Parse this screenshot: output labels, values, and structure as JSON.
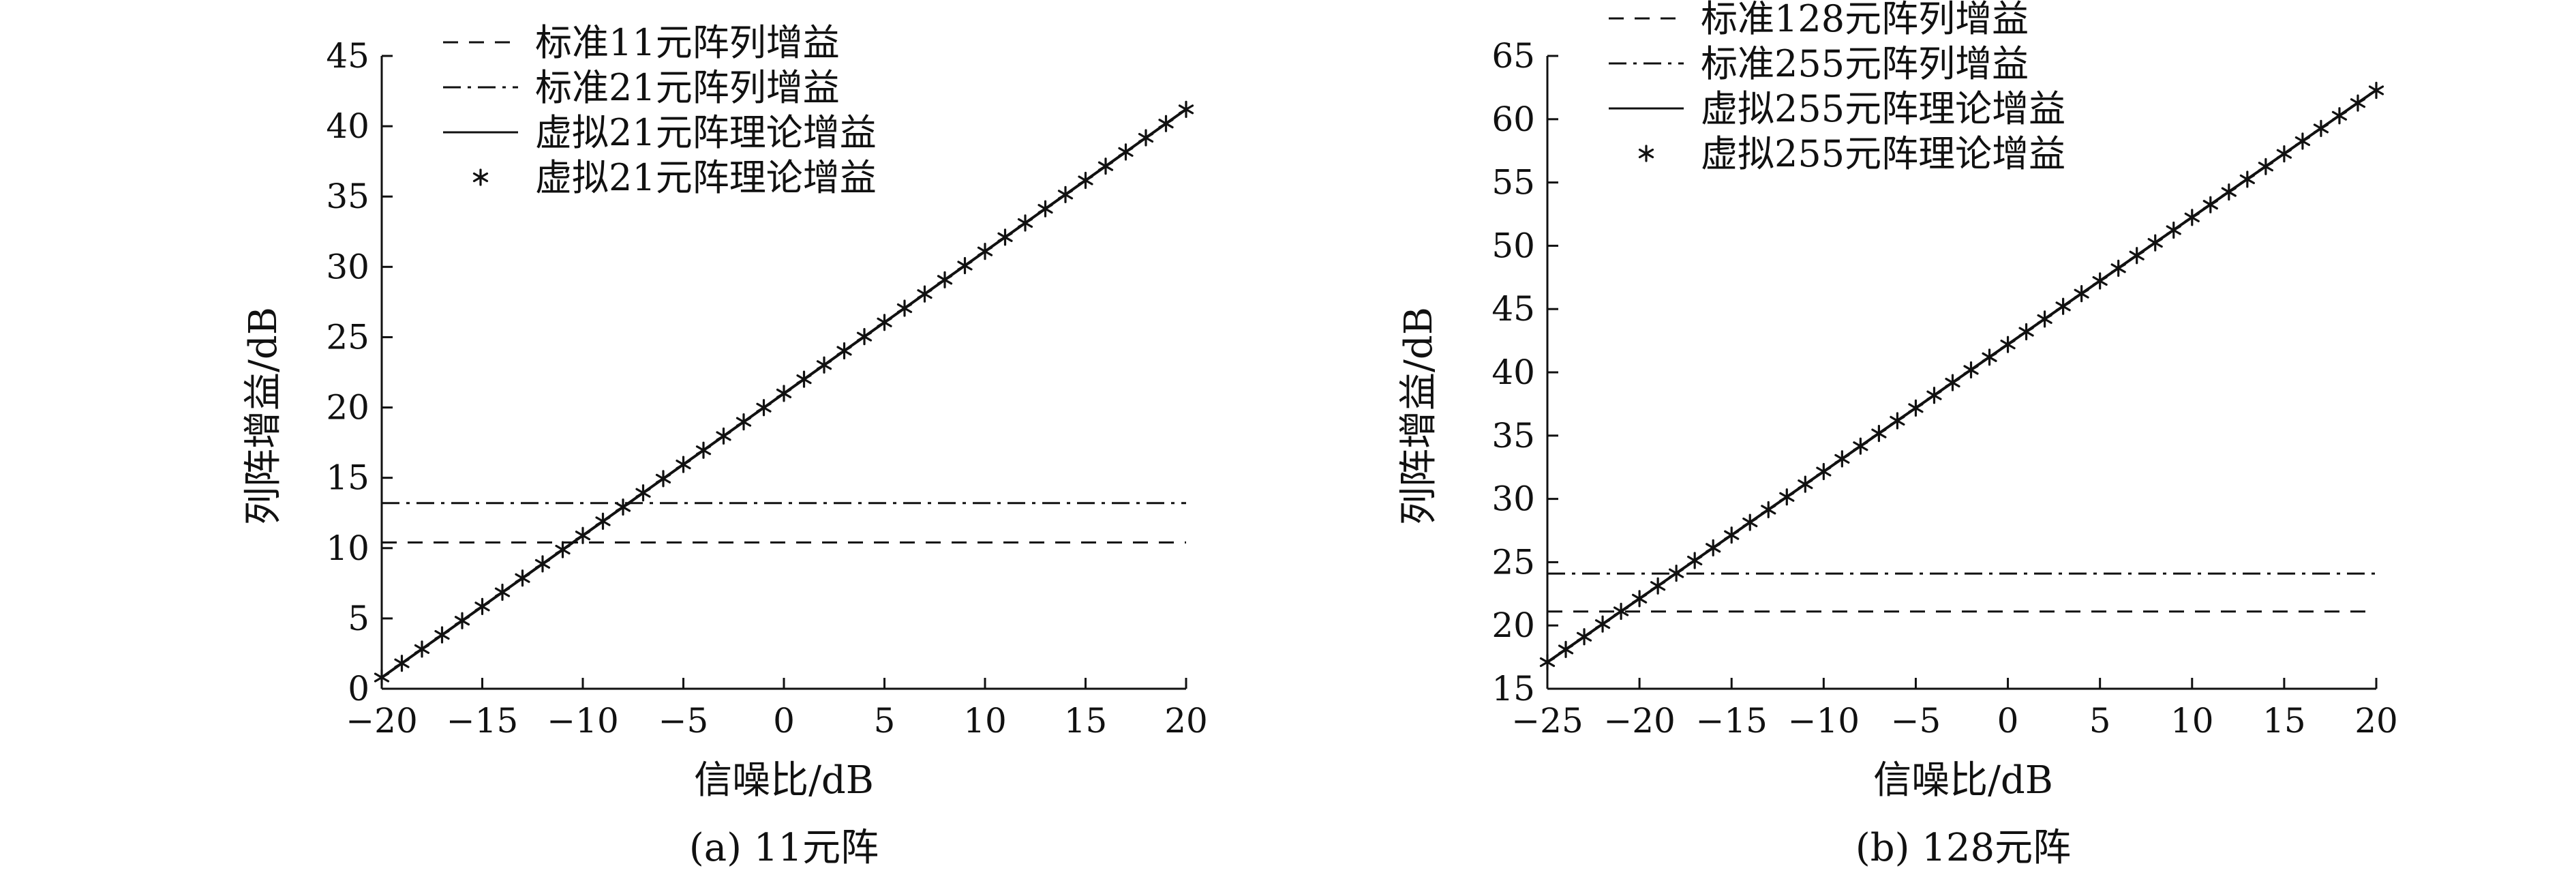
{
  "chart_data": [
    {
      "type": "line",
      "caption": "(a) 11元阵",
      "xlabel": "信噪比/dB",
      "ylabel": "列阵增益/dB",
      "xlim": [
        -20,
        20
      ],
      "ylim": [
        0,
        45
      ],
      "xticks": [
        "−20",
        "−15",
        "−10",
        "−5",
        "0",
        "5",
        "10",
        "15",
        "20"
      ],
      "yticks": [
        "0",
        "5",
        "10",
        "15",
        "20",
        "25",
        "30",
        "35",
        "40",
        "45"
      ],
      "legend_position": "top-left",
      "series": [
        {
          "name": "标准11元阵列增益",
          "style": "dashed",
          "kind": "constant",
          "value": 10.4
        },
        {
          "name": "标准21元阵列增益",
          "style": "dashdot",
          "kind": "constant",
          "value": 13.2
        },
        {
          "name": "虚拟21元阵理论增益",
          "style": "solid",
          "kind": "linear",
          "x": [
            -20,
            20
          ],
          "y": [
            0.8,
            41.2
          ]
        },
        {
          "name": "虚拟21元阵理论增益",
          "style": "marker",
          "marker": "asterisk",
          "kind": "markers",
          "x_start": -20,
          "x_end": 20,
          "x_step": 1,
          "y_at_x_start": 0.8,
          "slope": 1.01
        }
      ]
    },
    {
      "type": "line",
      "caption": "(b) 128元阵",
      "xlabel": "信噪比/dB",
      "ylabel": "列阵增益/dB",
      "xlim": [
        -25,
        20
      ],
      "ylim": [
        15,
        65
      ],
      "xticks": [
        "−25",
        "−20",
        "−15",
        "−10",
        "−5",
        "0",
        "5",
        "10",
        "15",
        "20"
      ],
      "yticks": [
        "15",
        "20",
        "25",
        "30",
        "35",
        "40",
        "45",
        "50",
        "55",
        "60",
        "65"
      ],
      "legend_position": "top-left",
      "series": [
        {
          "name": "标准128元阵列增益",
          "style": "dashed",
          "kind": "constant",
          "value": 21.1
        },
        {
          "name": "标准255元阵列增益",
          "style": "dashdot",
          "kind": "constant",
          "value": 24.1
        },
        {
          "name": "虚拟255元阵理论增益",
          "style": "solid",
          "kind": "linear",
          "x": [
            -25,
            20
          ],
          "y": [
            17.1,
            62.3
          ]
        },
        {
          "name": "虚拟255元阵理论增益",
          "style": "marker",
          "marker": "asterisk",
          "kind": "markers",
          "x_start": -25,
          "x_end": 20,
          "x_step": 1,
          "y_at_x_start": 17.1,
          "slope": 1.004
        }
      ]
    }
  ]
}
